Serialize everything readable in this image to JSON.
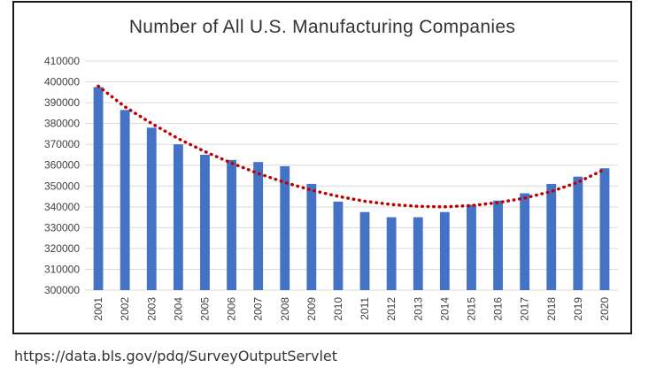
{
  "chart_data": {
    "type": "bar",
    "title": "Number of All U.S. Manufacturing Companies",
    "categories": [
      "2001",
      "2002",
      "2003",
      "2004",
      "2005",
      "2006",
      "2007",
      "2008",
      "2009",
      "2010",
      "2011",
      "2012",
      "2013",
      "2014",
      "2015",
      "2016",
      "2017",
      "2018",
      "2019",
      "2020"
    ],
    "values": [
      397500,
      386500,
      378000,
      370000,
      365000,
      362500,
      361500,
      359500,
      351000,
      342500,
      337500,
      335000,
      335000,
      337500,
      341000,
      343000,
      346500,
      351000,
      354500,
      358500
    ],
    "trendline": {
      "type": "polynomial",
      "values": [
        398000,
        388000,
        380000,
        372700,
        366500,
        361000,
        356000,
        351700,
        348000,
        345000,
        342700,
        341100,
        340200,
        340000,
        340600,
        342000,
        344200,
        347400,
        351800,
        358000
      ]
    },
    "ylim": [
      300000,
      410000
    ],
    "yticks": [
      300000,
      310000,
      320000,
      330000,
      340000,
      350000,
      360000,
      370000,
      380000,
      390000,
      400000,
      410000
    ],
    "ytick_labels": [
      "300000",
      "310000",
      "320000",
      "330000",
      "340000",
      "350000",
      "360000",
      "370000",
      "380000",
      "390000",
      "400000",
      "410000"
    ],
    "grid": true,
    "colors": {
      "bar": "#4472C4",
      "trendline": "#C00000",
      "grid": "#d9d9d9"
    }
  },
  "source": "https://data.bls.gov/pdq/SurveyOutputServlet"
}
